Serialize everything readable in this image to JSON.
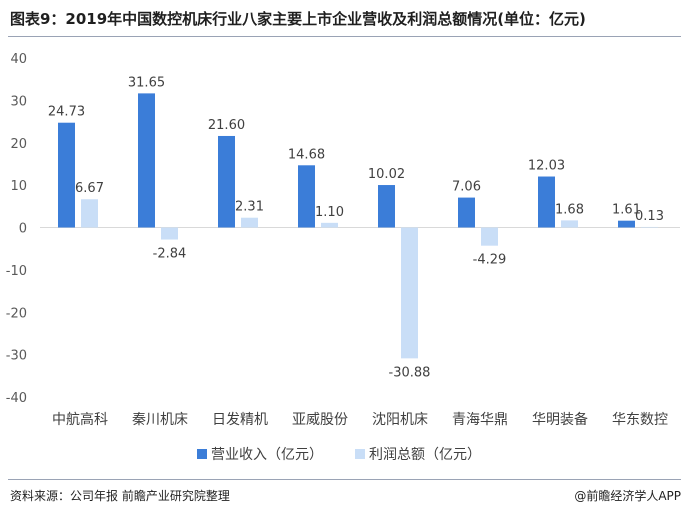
{
  "title": "图表9：2019年中国数控机床行业八家主要上市企业营收及利润总额情况(单位：亿元)",
  "footer": {
    "source": "资料来源：公司年报 前瞻产业研究院整理",
    "brand": "前瞻经济学人APP",
    "brand_icon": "at-sign-icon"
  },
  "colors": {
    "revenue": "#3b7dd8",
    "profit": "#c9def7"
  },
  "chart_data": {
    "type": "bar",
    "categories": [
      "中航高科",
      "秦川机床",
      "日发精机",
      "亚威股份",
      "沈阳机床",
      "青海华鼎",
      "华明装备",
      "华东数控"
    ],
    "series": [
      {
        "name": "营业收入（亿元）",
        "values": [
          24.73,
          31.65,
          21.6,
          14.68,
          10.02,
          7.06,
          12.03,
          1.61
        ]
      },
      {
        "name": "利润总额（亿元）",
        "values": [
          6.67,
          -2.84,
          2.31,
          1.1,
          -30.88,
          -4.29,
          1.68,
          0.13
        ]
      }
    ],
    "value_labels": [
      [
        "24.73",
        "31.65",
        "21.60",
        "14.68",
        "10.02",
        "7.06",
        "12.03",
        "1.61"
      ],
      [
        "6.67",
        "-2.84",
        "2.31",
        "1.10",
        "-30.88",
        "-4.29",
        "1.68",
        "0.13"
      ]
    ],
    "ylim": [
      -40,
      40
    ],
    "yticks": [
      "40",
      "30",
      "20",
      "10",
      "0",
      "-10",
      "-20",
      "-30",
      "-40"
    ],
    "ytick_values": [
      40,
      30,
      20,
      10,
      0,
      -10,
      -20,
      -30,
      -40
    ],
    "legend_position": "bottom",
    "grid": false
  }
}
